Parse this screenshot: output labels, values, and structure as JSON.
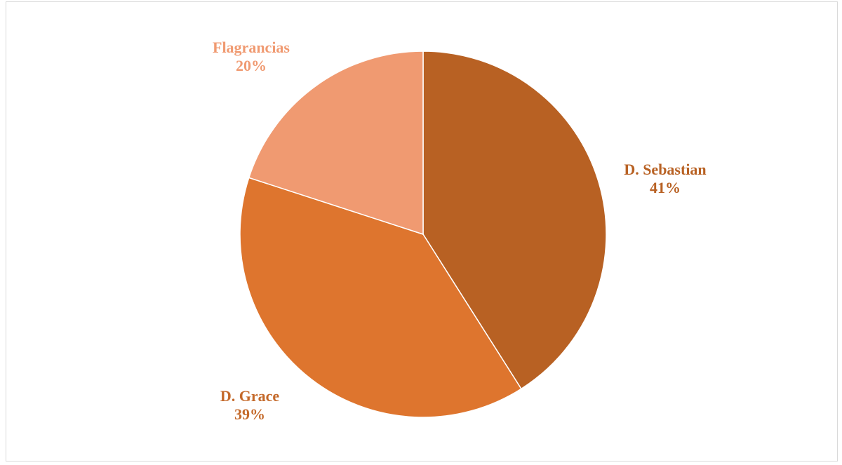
{
  "chart_data": {
    "type": "pie",
    "slices": [
      {
        "label": "D. Sebastian",
        "percent_label": "41%",
        "value": 41,
        "color": "#B86123",
        "label_color": "#B86123"
      },
      {
        "label": "D. Grace",
        "percent_label": "39%",
        "value": 39,
        "color": "#DE752E",
        "label_color": "#C4692A"
      },
      {
        "label": "Flagrancias",
        "percent_label": "20%",
        "value": 20,
        "color": "#F09A71",
        "label_color": "#F09A71"
      }
    ],
    "start_angle_deg": 0,
    "direction": "clockwise",
    "legend": "none"
  }
}
